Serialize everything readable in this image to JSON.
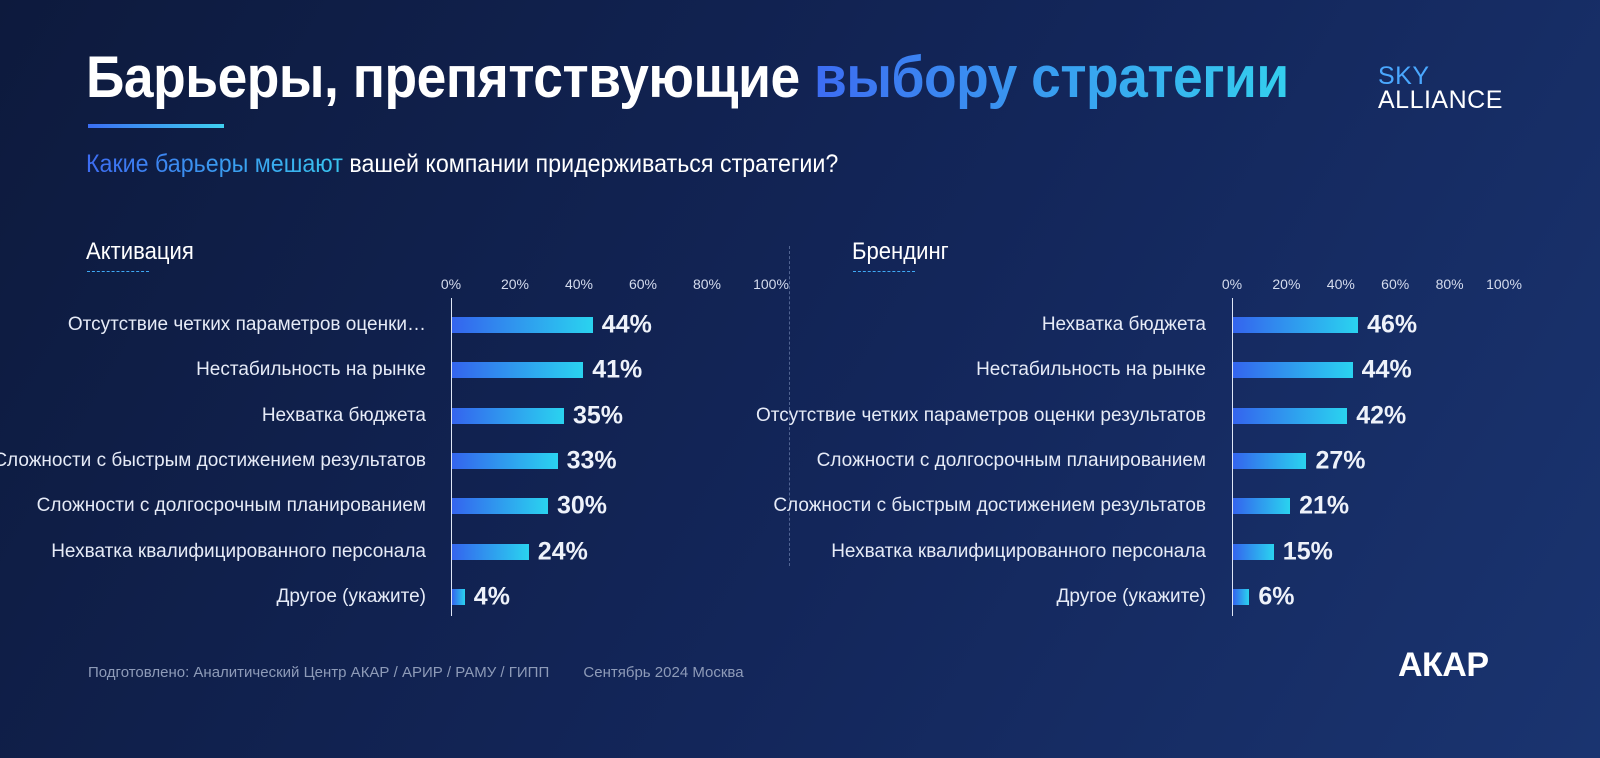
{
  "title": {
    "main": "Барьеры, препятствующие",
    "accent": "выбору стратегии"
  },
  "logo": {
    "line1": "SKY",
    "line2": "ALLIANCE"
  },
  "subtitle": {
    "accent": "Какие барьеры мешают",
    "rest": "вашей компании придерживаться стратегии?"
  },
  "footer": {
    "source": "Подготовлено: Аналитический Центр АКАР / АРИР / РАМУ / ГИПП",
    "date": "Сентябрь 2024 Москва"
  },
  "brand": "АКАР",
  "colors": {
    "bar_start": "#3464ee",
    "bar_end": "#2ad3ef",
    "accent_blue": "#3d6cf2",
    "accent_cyan": "#34cfee"
  },
  "chart_data": [
    {
      "type": "bar",
      "orientation": "horizontal",
      "title": "Активация",
      "ticks": [
        "0%",
        "20%",
        "40%",
        "60%",
        "80%",
        "100%"
      ],
      "xlim": [
        0,
        100
      ],
      "categories": [
        "Отсутствие четких параметров оценки…",
        "Нестабильность на рынке",
        "Нехватка бюджета",
        "Сложности с быстрым достижением результатов",
        "Сложности с долгосрочным планированием",
        "Нехватка квалифицированного персонала",
        "Другое (укажите)"
      ],
      "values": [
        44,
        41,
        35,
        33,
        30,
        24,
        4
      ],
      "value_labels": [
        "44%",
        "41%",
        "35%",
        "33%",
        "30%",
        "24%",
        "4%"
      ]
    },
    {
      "type": "bar",
      "orientation": "horizontal",
      "title": "Брендинг",
      "ticks": [
        "0%",
        "20%",
        "40%",
        "60%",
        "80%",
        "100%"
      ],
      "xlim": [
        0,
        100
      ],
      "categories": [
        "Нехватка бюджета",
        "Нестабильность на рынке",
        "Отсутствие четких параметров оценки результатов",
        "Сложности с долгосрочным планированием",
        "Сложности с быстрым достижением результатов",
        "Нехватка квалифицированного персонала",
        "Другое (укажите)"
      ],
      "values": [
        46,
        44,
        42,
        27,
        21,
        15,
        6
      ],
      "value_labels": [
        "46%",
        "44%",
        "42%",
        "27%",
        "21%",
        "15%",
        "6%"
      ]
    }
  ]
}
